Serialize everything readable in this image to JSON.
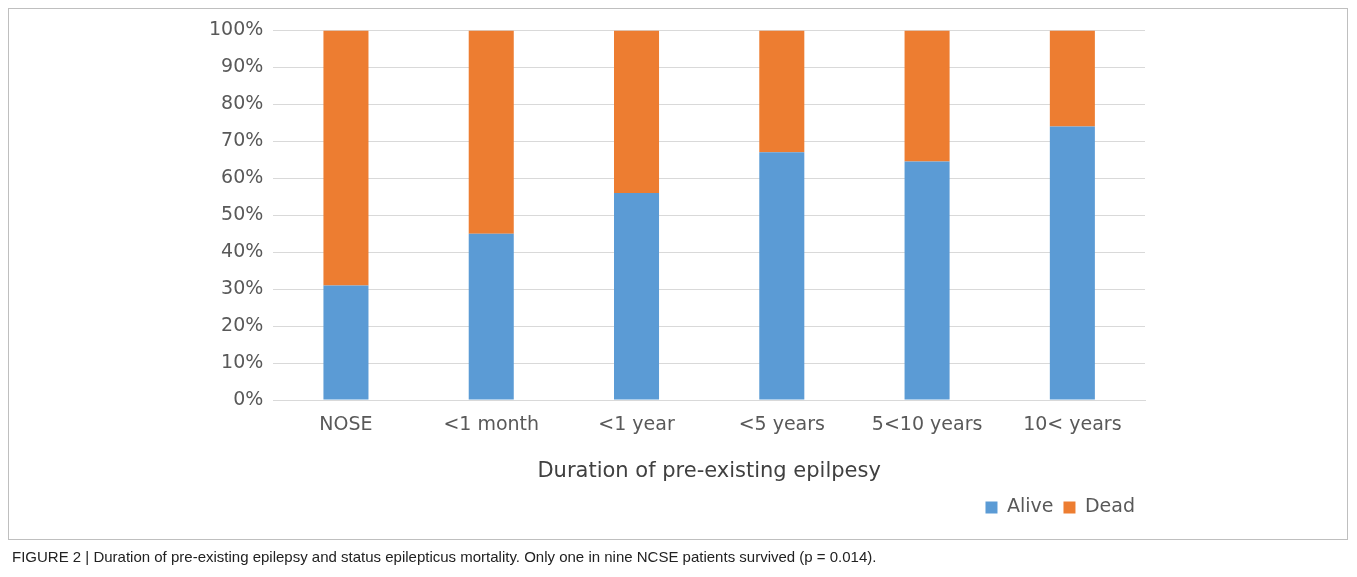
{
  "chart_data": {
    "type": "bar",
    "xlabel": "Duration of pre-existing epilpesy",
    "categories": [
      "NOSE",
      "<1 month",
      "<1 year",
      "<5 years",
      "5<10 years",
      "10< years"
    ],
    "series": [
      {
        "name": "Alive",
        "color": "#5b9bd5",
        "values": [
          31,
          45,
          56,
          67,
          64.5,
          74
        ]
      },
      {
        "name": "Dead",
        "color": "#ed7d31",
        "values": [
          69,
          55,
          44,
          33,
          35.5,
          26
        ]
      }
    ],
    "stacked": true,
    "ylim": [
      0,
      100
    ],
    "yticks": [
      {
        "value": 0,
        "label": "0%"
      },
      {
        "value": 10,
        "label": "10%"
      },
      {
        "value": 20,
        "label": "20%"
      },
      {
        "value": 30,
        "label": "30%"
      },
      {
        "value": 40,
        "label": "40%"
      },
      {
        "value": 50,
        "label": "50%"
      },
      {
        "value": 60,
        "label": "60%"
      },
      {
        "value": 70,
        "label": "70%"
      },
      {
        "value": 80,
        "label": "80%"
      },
      {
        "value": 90,
        "label": "90%"
      },
      {
        "value": 100,
        "label": "100%"
      }
    ],
    "grid": "y",
    "legend": "bottom right",
    "annotations": [
      "FIGURE 2 | Duration of pre-existing epilepsy and status epilepticus mortality. Only one in nine NCSE patients survived (p = 0.014)."
    ]
  }
}
